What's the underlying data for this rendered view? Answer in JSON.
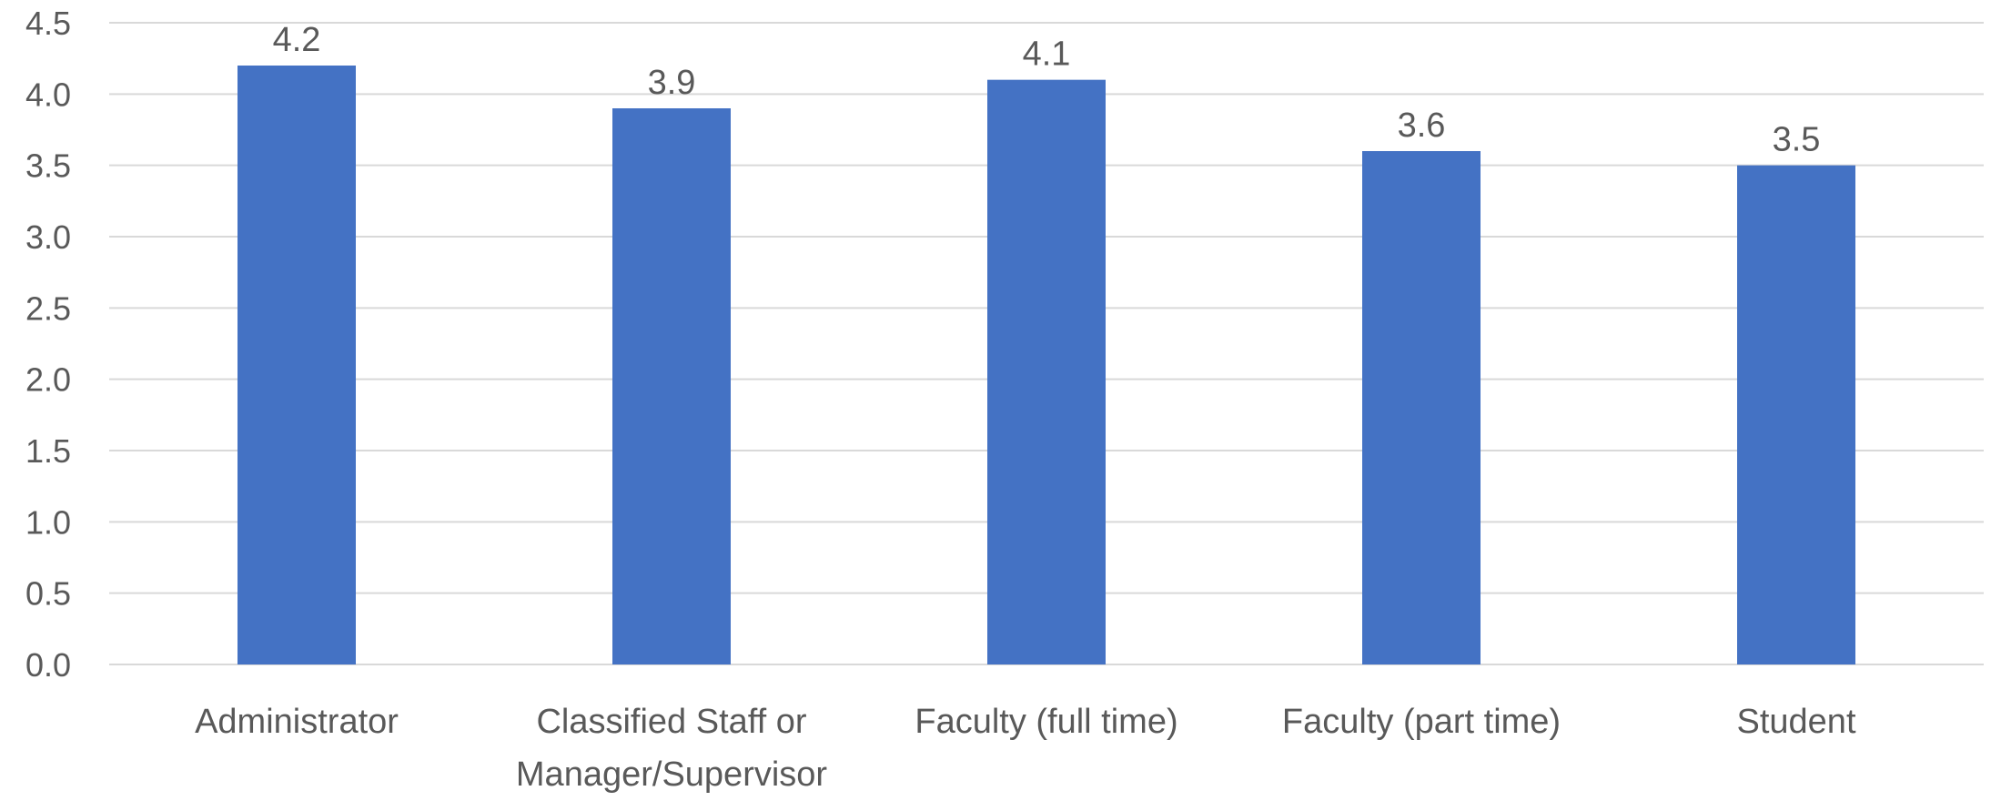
{
  "chart_data": {
    "type": "bar",
    "title": "",
    "xlabel": "",
    "ylabel": "",
    "categories": [
      [
        "Administrator"
      ],
      [
        "Classified Staff or",
        "Manager/Supervisor"
      ],
      [
        "Faculty (full time)"
      ],
      [
        "Faculty (part time)"
      ],
      [
        "Student"
      ]
    ],
    "values": [
      4.2,
      3.9,
      4.1,
      3.6,
      3.5
    ],
    "data_labels": [
      "4.2",
      "3.9",
      "4.1",
      "3.6",
      "3.5"
    ],
    "y_ticks": [
      "0.0",
      "0.5",
      "1.0",
      "1.5",
      "2.0",
      "2.5",
      "3.0",
      "3.5",
      "4.0",
      "4.5"
    ],
    "ylim": [
      0,
      4.5
    ],
    "grid": true,
    "legend": "none",
    "colors": {
      "bar": "#4472C4",
      "grid": "#D9D9D9",
      "text": "#595959"
    }
  }
}
